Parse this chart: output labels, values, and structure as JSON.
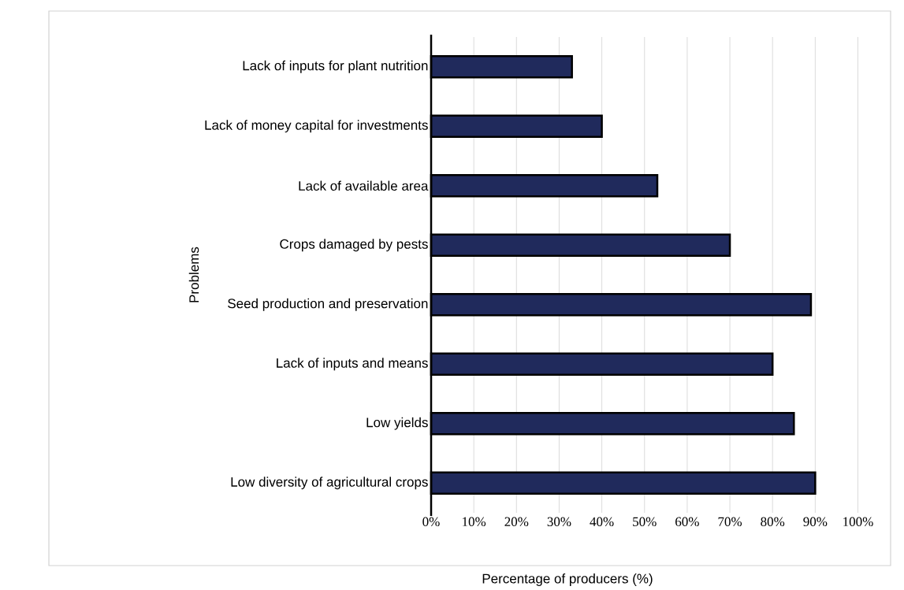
{
  "chart_data": {
    "type": "bar",
    "orientation": "horizontal",
    "xlabel": "Percentage of producers (%)",
    "ylabel": "Problems",
    "categories": [
      "Lack of inputs for plant nutrition",
      "Lack of money capital for investments",
      "Lack of available area",
      "Crops damaged by pests",
      "Seed production and preservation",
      "Lack of inputs and means",
      "Low yields",
      "Low diversity of agricultural crops"
    ],
    "values": [
      33,
      40,
      53,
      70,
      89,
      80,
      85,
      90
    ],
    "color": "#202a5c",
    "xlim": [
      0,
      100
    ],
    "xticks": [
      {
        "value": 0,
        "label": "0%"
      },
      {
        "value": 10,
        "label": "10%"
      },
      {
        "value": 20,
        "label": "20%"
      },
      {
        "value": 30,
        "label": "30%"
      },
      {
        "value": 40,
        "label": "40%"
      },
      {
        "value": 50,
        "label": "50%"
      },
      {
        "value": 60,
        "label": "60%"
      },
      {
        "value": 70,
        "label": "70%"
      },
      {
        "value": 80,
        "label": "80%"
      },
      {
        "value": 90,
        "label": "90%"
      },
      {
        "value": 100,
        "label": "100%"
      }
    ],
    "grid": "x"
  }
}
